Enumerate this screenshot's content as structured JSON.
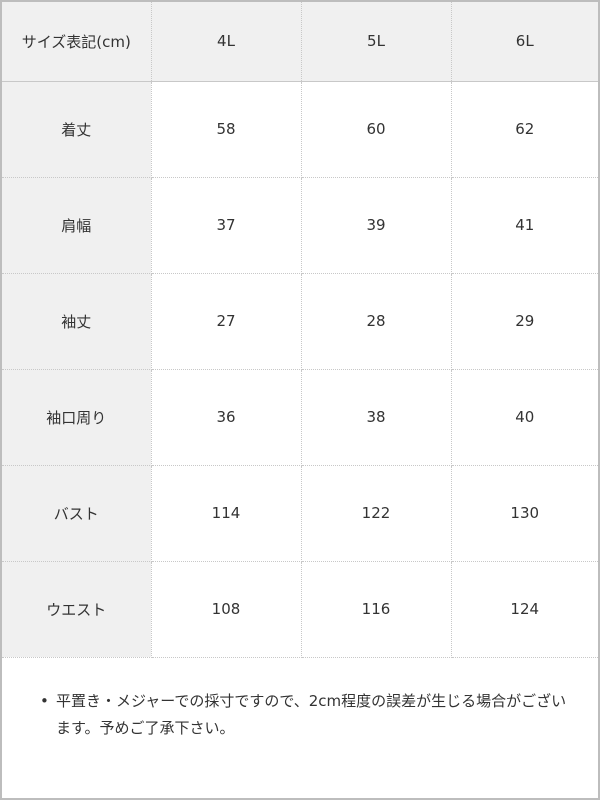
{
  "table": {
    "header": [
      "サイズ表記(cm)",
      "4L",
      "5L",
      "6L"
    ],
    "rows": [
      {
        "label": "着丈",
        "values": [
          "58",
          "60",
          "62"
        ]
      },
      {
        "label": "肩幅",
        "values": [
          "37",
          "39",
          "41"
        ]
      },
      {
        "label": "袖丈",
        "values": [
          "27",
          "28",
          "29"
        ]
      },
      {
        "label": "袖口周り",
        "values": [
          "36",
          "38",
          "40"
        ]
      },
      {
        "label": "バスト",
        "values": [
          "114",
          "122",
          "130"
        ]
      },
      {
        "label": "ウエスト",
        "values": [
          "108",
          "116",
          "124"
        ]
      }
    ]
  },
  "note": {
    "bullet": "•",
    "text": "平置き・メジャーでの採寸ですので、2cm程度の誤差が生じる場合がございます。予めご了承下さい。"
  }
}
